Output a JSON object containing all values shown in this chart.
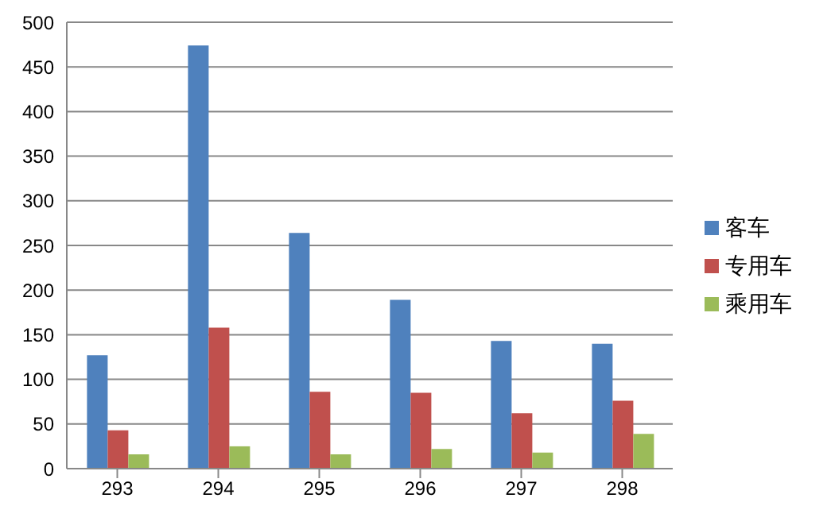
{
  "chart_data": {
    "type": "bar",
    "categories": [
      "293",
      "294",
      "295",
      "296",
      "297",
      "298"
    ],
    "series": [
      {
        "name": "客车",
        "color": "#4f81bd",
        "values": [
          127,
          474,
          264,
          189,
          143,
          140
        ]
      },
      {
        "name": "专用车",
        "color": "#c0504d",
        "values": [
          43,
          158,
          86,
          85,
          62,
          76
        ]
      },
      {
        "name": "乘用车",
        "color": "#9bbb59",
        "values": [
          16,
          25,
          16,
          22,
          18,
          39
        ]
      }
    ],
    "ylim": [
      0,
      500
    ],
    "yticks": [
      0,
      50,
      100,
      150,
      200,
      250,
      300,
      350,
      400,
      450,
      500
    ],
    "grid": "y",
    "legend": "right"
  }
}
